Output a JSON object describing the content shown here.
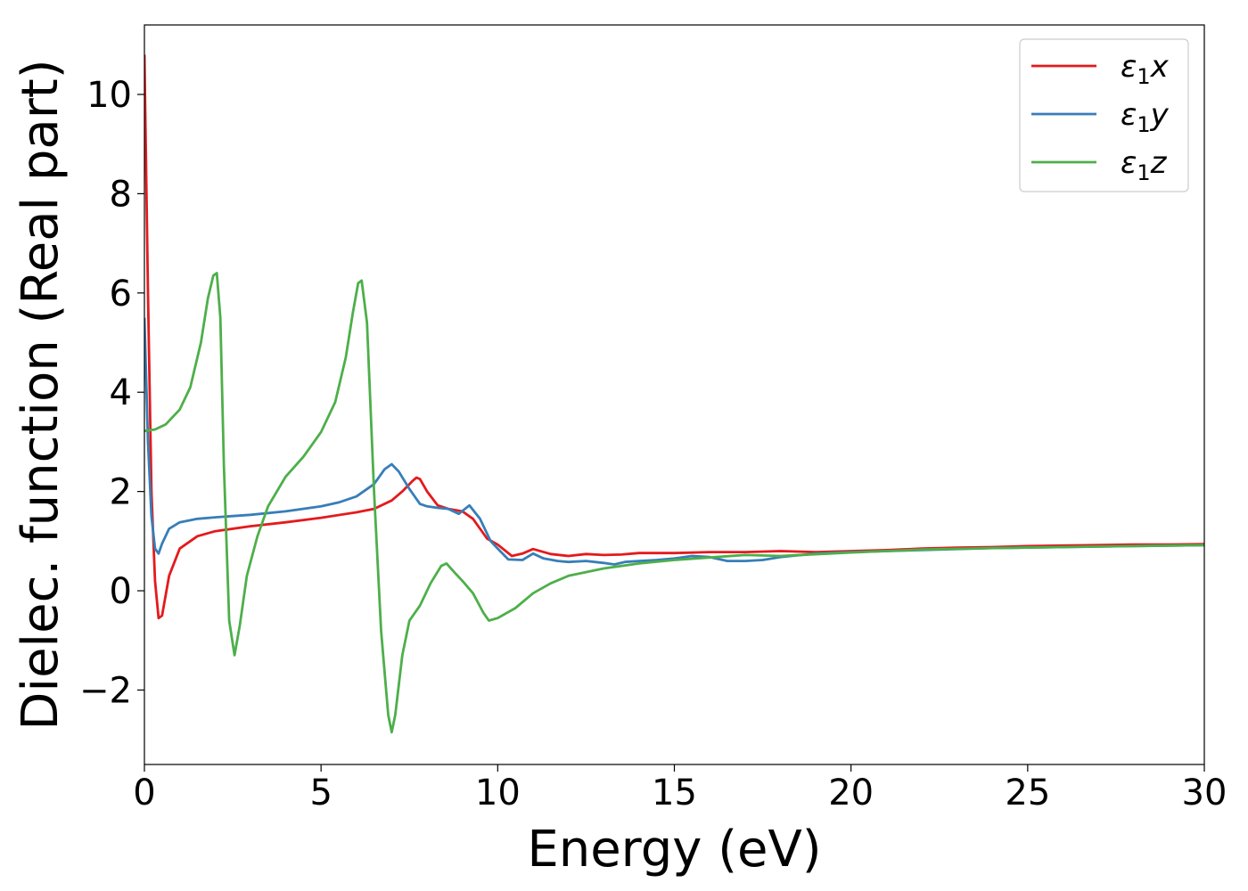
{
  "chart_data": {
    "type": "line",
    "title": "",
    "xlabel": "Energy (eV)",
    "ylabel": "Dielec. function (Real part)",
    "xlim": [
      0,
      30
    ],
    "ylim": [
      -3.5,
      11.4
    ],
    "xticks": [
      0,
      5,
      10,
      15,
      20,
      25,
      30
    ],
    "xtick_labels": [
      "0",
      "5",
      "10",
      "15",
      "20",
      "25",
      "30"
    ],
    "yticks": [
      -2,
      0,
      2,
      4,
      6,
      8,
      10
    ],
    "ytick_labels": [
      "−2",
      "0",
      "2",
      "4",
      "6",
      "8",
      "10"
    ],
    "grid": false,
    "legend_position": "top-right",
    "series": [
      {
        "name": "ε₁x",
        "legend": {
          "main": "ε",
          "sub": "1",
          "tail": "x"
        },
        "color": "#e41a1c",
        "x": [
          0,
          0.1,
          0.2,
          0.3,
          0.4,
          0.5,
          0.7,
          1.0,
          1.5,
          2,
          3,
          4,
          5,
          6,
          6.5,
          7,
          7.3,
          7.6,
          7.7,
          7.8,
          8.0,
          8.3,
          8.6,
          9.0,
          9.3,
          9.7,
          10.0,
          10.4,
          10.7,
          11.0,
          11.5,
          12,
          12.5,
          13,
          13.5,
          14,
          15,
          16,
          17,
          18,
          19,
          20,
          21,
          22,
          23,
          24,
          25,
          26,
          27,
          28,
          29,
          30
        ],
        "y": [
          10.8,
          6.0,
          2.0,
          0.2,
          -0.55,
          -0.5,
          0.3,
          0.85,
          1.1,
          1.2,
          1.3,
          1.38,
          1.47,
          1.58,
          1.65,
          1.82,
          2.0,
          2.22,
          2.28,
          2.25,
          2.0,
          1.72,
          1.65,
          1.6,
          1.45,
          1.05,
          0.93,
          0.7,
          0.75,
          0.84,
          0.74,
          0.7,
          0.74,
          0.72,
          0.73,
          0.76,
          0.76,
          0.78,
          0.78,
          0.8,
          0.78,
          0.8,
          0.82,
          0.85,
          0.87,
          0.88,
          0.9,
          0.91,
          0.92,
          0.93,
          0.93,
          0.94
        ]
      },
      {
        "name": "ε₁y",
        "legend": {
          "main": "ε",
          "sub": "1",
          "tail": "y"
        },
        "color": "#377eb8",
        "x": [
          0,
          0.1,
          0.2,
          0.3,
          0.4,
          0.5,
          0.7,
          1.0,
          1.5,
          2,
          3,
          4,
          5,
          5.5,
          6,
          6.5,
          6.8,
          7.0,
          7.2,
          7.5,
          7.8,
          8.0,
          8.3,
          8.6,
          8.9,
          9.2,
          9.5,
          9.8,
          10.0,
          10.3,
          10.7,
          11.0,
          11.3,
          11.7,
          12,
          12.5,
          13,
          13.3,
          13.6,
          14,
          14.5,
          15,
          15.5,
          16,
          16.5,
          17,
          17.5,
          18,
          19,
          20,
          22,
          24,
          26,
          28,
          30
        ],
        "y": [
          5.5,
          3.0,
          1.5,
          0.85,
          0.75,
          0.95,
          1.25,
          1.38,
          1.45,
          1.48,
          1.53,
          1.6,
          1.7,
          1.78,
          1.9,
          2.15,
          2.45,
          2.55,
          2.4,
          2.05,
          1.75,
          1.7,
          1.67,
          1.65,
          1.55,
          1.72,
          1.45,
          1.0,
          0.85,
          0.63,
          0.62,
          0.75,
          0.65,
          0.6,
          0.58,
          0.6,
          0.56,
          0.53,
          0.58,
          0.6,
          0.62,
          0.65,
          0.7,
          0.68,
          0.6,
          0.6,
          0.62,
          0.68,
          0.75,
          0.78,
          0.82,
          0.86,
          0.88,
          0.9,
          0.92
        ]
      },
      {
        "name": "ε₁z",
        "legend": {
          "main": "ε",
          "sub": "1",
          "tail": "z"
        },
        "color": "#4daf4a",
        "x": [
          0,
          0.3,
          0.6,
          1.0,
          1.3,
          1.6,
          1.8,
          1.95,
          2.05,
          2.15,
          2.25,
          2.4,
          2.55,
          2.7,
          2.9,
          3.2,
          3.5,
          4.0,
          4.5,
          5.0,
          5.4,
          5.7,
          5.9,
          6.05,
          6.15,
          6.3,
          6.5,
          6.7,
          6.9,
          7.0,
          7.1,
          7.3,
          7.5,
          7.8,
          8.1,
          8.4,
          8.55,
          8.8,
          9.0,
          9.3,
          9.6,
          9.75,
          10.0,
          10.5,
          11.0,
          11.5,
          12,
          13,
          14,
          15,
          16,
          17,
          18,
          20,
          22,
          24,
          26,
          28,
          30
        ],
        "y": [
          3.22,
          3.25,
          3.35,
          3.65,
          4.1,
          5.0,
          5.9,
          6.35,
          6.4,
          5.5,
          2.5,
          -0.6,
          -1.3,
          -0.7,
          0.3,
          1.1,
          1.7,
          2.3,
          2.7,
          3.2,
          3.8,
          4.7,
          5.6,
          6.2,
          6.25,
          5.4,
          2.0,
          -0.8,
          -2.5,
          -2.85,
          -2.5,
          -1.3,
          -0.6,
          -0.3,
          0.15,
          0.5,
          0.55,
          0.35,
          0.2,
          -0.05,
          -0.45,
          -0.6,
          -0.55,
          -0.35,
          -0.05,
          0.15,
          0.3,
          0.45,
          0.55,
          0.62,
          0.67,
          0.72,
          0.7,
          0.77,
          0.83,
          0.86,
          0.88,
          0.9,
          0.92
        ]
      }
    ]
  }
}
